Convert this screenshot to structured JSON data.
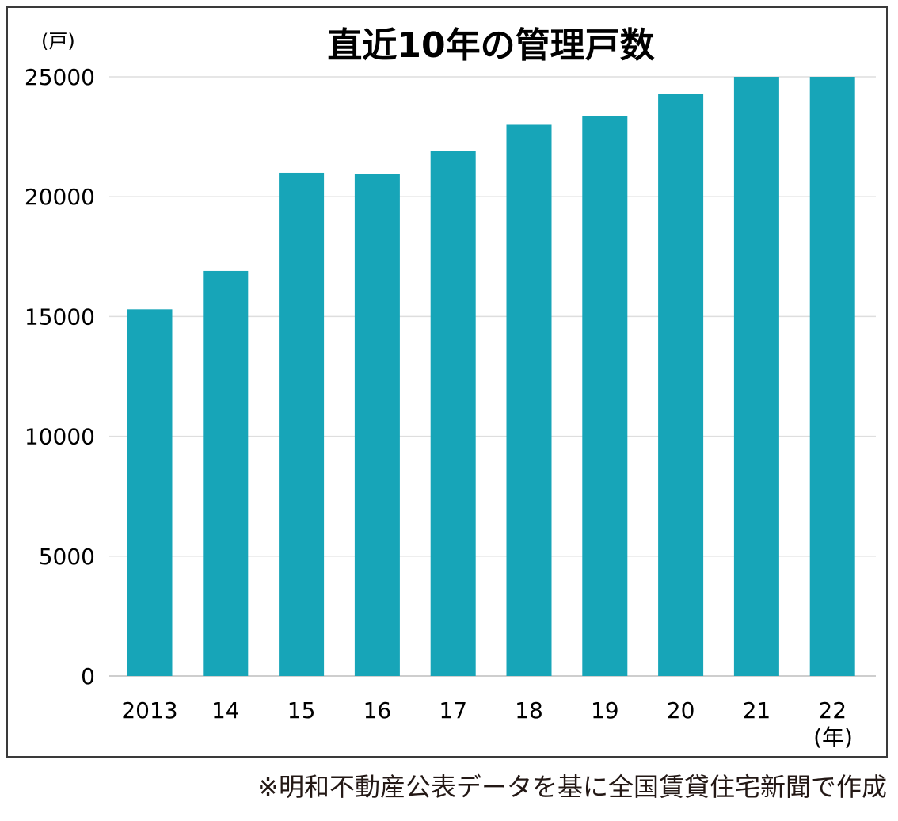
{
  "chart_data": {
    "type": "bar",
    "title": "直近10年の管理戸数",
    "ylabel": "(戸)",
    "xlabel": "(年)",
    "categories": [
      "2013",
      "14",
      "15",
      "16",
      "17",
      "18",
      "19",
      "20",
      "21",
      "22"
    ],
    "values": [
      15300,
      16900,
      21000,
      20950,
      21900,
      23000,
      23350,
      24300,
      25000,
      25000
    ],
    "yticks": [
      0,
      5000,
      10000,
      15000,
      20000,
      25000
    ],
    "ylim": [
      0,
      25000
    ],
    "grid": true,
    "bar_color": "#17a5b8"
  },
  "source_note": "※明和不動産公表データを基に全国賃貸住宅新聞で作成"
}
